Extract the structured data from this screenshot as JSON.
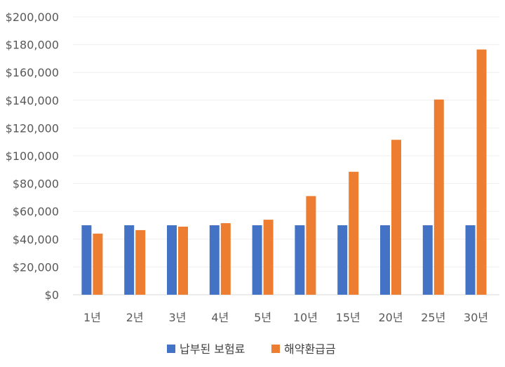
{
  "chart_data": {
    "type": "bar",
    "title": "",
    "xlabel": "",
    "ylabel": "",
    "categories": [
      "1년",
      "2년",
      "3년",
      "4년",
      "5년",
      "10년",
      "15년",
      "20년",
      "25년",
      "30년"
    ],
    "series": [
      {
        "name": "납부된 보험료",
        "color": "#4472C4",
        "values": [
          50000,
          50000,
          50000,
          50000,
          50000,
          50000,
          50000,
          50000,
          50000,
          50000
        ]
      },
      {
        "name": "해약환급금",
        "color": "#ED7D31",
        "values": [
          44000,
          46500,
          49000,
          51500,
          54000,
          71000,
          88500,
          111500,
          140500,
          176500
        ]
      }
    ],
    "ylim": [
      0,
      200000
    ],
    "yticks": [
      "$0",
      "$20,000",
      "$40,000",
      "$60,000",
      "$80,000",
      "$100,000",
      "$120,000",
      "$140,000",
      "$160,000",
      "$180,000",
      "$200,000"
    ],
    "grid": true,
    "legend": "bottom"
  }
}
